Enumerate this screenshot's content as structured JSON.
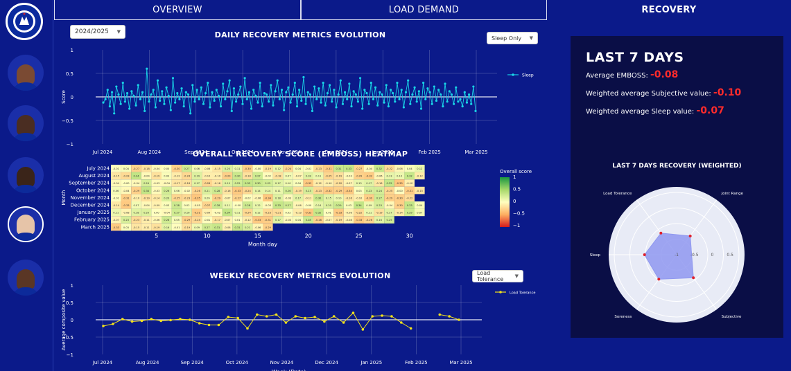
{
  "sidebar": {
    "logo_label": "CHELSEA FOOTBALL CLUB",
    "players": [
      {
        "name": "player-1",
        "skin": "#7a4a33"
      },
      {
        "name": "player-2",
        "skin": "#4a2d22"
      },
      {
        "name": "player-3",
        "skin": "#3a2419"
      },
      {
        "name": "player-4",
        "skin": "#e6c4a8"
      },
      {
        "name": "player-5",
        "skin": "#5a3625"
      }
    ]
  },
  "tabs": [
    {
      "label": "OVERVIEW"
    },
    {
      "label": "LOAD DEMAND"
    },
    {
      "label": "RECOVERY"
    }
  ],
  "season_select": {
    "value": "2024/2025"
  },
  "daily": {
    "title": "DAILY RECOVERY METRICS EVOLUTION",
    "dropdown": "Sleep Only",
    "legend": "Sleep",
    "ylabel": "Score",
    "color": "#19d3e6"
  },
  "heatmap": {
    "title": "OVERALL RECOVERY SCORE (EMBOSS) HEATMAP",
    "ylabel": "Month",
    "xlabel": "Month day",
    "colorbar_title": "Overall score",
    "colorbar_ticks": [
      "1",
      "0.5",
      "0",
      "−0.5",
      "−1"
    ]
  },
  "weekly": {
    "title": "WEEKLY RECOVERY METRICS EVOLUTION",
    "dropdown": "Load Tolerance",
    "legend": "Load Tolerance",
    "ylabel": "Average composite value",
    "xlabel": "Week (Date)",
    "color": "#f3e21b"
  },
  "kpis": {
    "title": "LAST 7 DAYS",
    "emboss_label": "Average EMBOSS:",
    "emboss_value": "-0.08",
    "subjective_label": "Weighted average Subjective value:",
    "subjective_value": "-0.10",
    "sleep_label": "Weighted average Sleep value:",
    "sleep_value": "-0.07"
  },
  "radar": {
    "title": "LAST 7 DAYS RECOVERY (WEIGHTED)",
    "ticks": [
      "-1",
      "-0.5",
      "0",
      "0.5"
    ]
  },
  "chart_data": [
    {
      "type": "line",
      "name": "daily",
      "ylim": [
        -1,
        1
      ],
      "yticks": [
        "1",
        "0.5",
        "0",
        "−0.5",
        "−1"
      ],
      "xticks": [
        "Jul 2024",
        "Aug 2024",
        "Sep 2024",
        "Oct 2024",
        "Nov 2024",
        "Dec 2024",
        "Jan 2025",
        "Feb 2025",
        "Mar 2025"
      ],
      "series": [
        {
          "name": "Sleep",
          "values": [
            -0.12,
            -0.05,
            0.15,
            -0.2,
            0.1,
            -0.35,
            0.22,
            0.05,
            -0.15,
            0.3,
            -0.1,
            0.08,
            -0.25,
            0.12,
            0.02,
            -0.18,
            0.25,
            -0.05,
            0.1,
            -0.3,
            0.6,
            -0.1,
            0.05,
            0.15,
            -0.22,
            0.35,
            -0.08,
            0.12,
            -0.15,
            0.2,
            0.02,
            -0.28,
            0.4,
            -0.12,
            0.08,
            -0.05,
            0.18,
            -0.2,
            0.1,
            0.05,
            -0.35,
            0.25,
            -0.1,
            0.15,
            -0.05,
            0.2,
            -0.15,
            0.08,
            0.3,
            -0.22,
            0.1,
            -0.08,
            0.15,
            0.02,
            -0.2,
            0.28,
            -0.05,
            0.12,
            0.35,
            -0.3,
            0.18,
            -0.1,
            0.05,
            0.22,
            -0.15,
            0.4,
            -0.05,
            0.1,
            -0.25,
            0.15,
            0.02,
            -0.12,
            0.3,
            -0.2,
            0.08,
            0.05,
            -0.1,
            0.25,
            -0.18,
            0.12,
            0.35,
            -0.05,
            0.15,
            -0.28,
            0.1,
            0.2,
            -0.12,
            0.05,
            0.3,
            -0.2,
            0.15,
            -0.08,
            0.42,
            -0.15,
            0.1,
            0.05,
            -0.3,
            0.22,
            -0.05,
            0.18,
            -0.12,
            0.3,
            -0.18,
            0.08,
            0.25,
            -0.1,
            0.15,
            -0.22,
            0.05,
            0.35,
            -0.15,
            0.1,
            -0.05,
            0.28,
            -0.2,
            0.12,
            0.05,
            -0.1,
            0.4,
            -0.25,
            0.15,
            0.08,
            -0.15,
            0.3,
            -0.05,
            0.2,
            -0.18,
            0.1,
            0.05,
            -0.12,
            0.25,
            -0.2,
            0.15,
            0.08,
            -0.1,
            0.3,
            -0.05,
            0.15,
            -0.22,
            0.1,
            0.35,
            -0.15,
            0.05,
            0.2,
            -0.1,
            0.12,
            -0.25,
            0.3,
            -0.05,
            0.18,
            0.1,
            -0.15,
            0.22,
            -0.08,
            0.15,
            0.05,
            -0.2,
            0.28,
            -0.1,
            0.12,
            0.05,
            -0.15,
            0.2,
            -0.1,
            -0.05,
            -0.2,
            0.1,
            -0.12,
            0.05,
            -0.15,
            0.22,
            -0.3
          ]
        }
      ]
    },
    {
      "type": "heatmap",
      "name": "emboss-heatmap",
      "rows": [
        "July 2024",
        "August 2024",
        "September 2024",
        "October 2024",
        "November 2024",
        "December 2024",
        "January 2025",
        "February 2025",
        "March 2025"
      ],
      "xticks": [
        "5",
        "10",
        "15",
        "20",
        "25",
        "30"
      ],
      "zlim": [
        -1,
        1
      ],
      "seed_note": ""
    },
    {
      "type": "line",
      "name": "weekly",
      "ylim": [
        -1,
        1
      ],
      "yticks": [
        "1",
        "0.5",
        "0",
        "−0.5",
        "−1"
      ],
      "xticks": [
        "Jul 2024",
        "Aug 2024",
        "Sep 2024",
        "Oct 2024",
        "Nov 2024",
        "Dec 2024",
        "Jan 2025",
        "Feb 2025",
        "Mar 2025"
      ],
      "series": [
        {
          "name": "Load Tolerance",
          "values": [
            -0.18,
            -0.12,
            0.02,
            -0.05,
            -0.03,
            0.02,
            -0.03,
            -0.01,
            0.02,
            0.0,
            -0.1,
            -0.15,
            -0.15,
            0.08,
            0.05,
            -0.25,
            0.15,
            0.1,
            0.15,
            -0.08,
            0.1,
            0.05,
            0.08,
            -0.05,
            0.1,
            -0.08,
            0.2,
            -0.28,
            0.1,
            0.12,
            0.1,
            -0.08,
            -0.25,
            null,
            null,
            0.15,
            0.1,
            0.0
          ]
        }
      ]
    },
    {
      "type": "radar",
      "name": "last-7-days-recovery",
      "axes": [
        "Joint Range",
        "Subjective",
        "Soreness",
        "Sleep",
        "Load Tolerance"
      ],
      "values": [
        -0.35,
        -0.2,
        -0.15,
        -0.1,
        -0.25
      ],
      "rlim": [
        -1,
        0.75
      ]
    }
  ]
}
